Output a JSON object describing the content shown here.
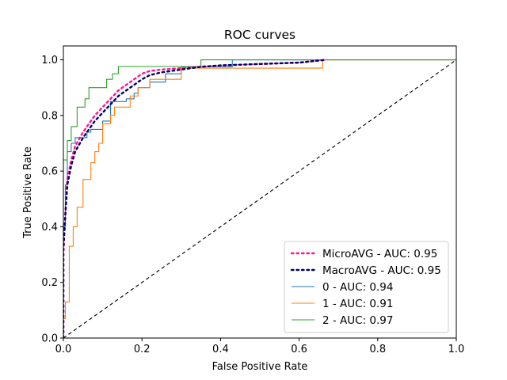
{
  "chart_data": {
    "type": "line",
    "title": "ROC curves",
    "xlabel": "False Positive Rate",
    "ylabel": "True Positive Rate",
    "xlim": [
      0.0,
      1.0
    ],
    "ylim": [
      0.0,
      1.05
    ],
    "xticks": [
      "0.0",
      "0.2",
      "0.4",
      "0.6",
      "0.8",
      "1.0"
    ],
    "yticks": [
      "0.0",
      "0.2",
      "0.4",
      "0.6",
      "0.8",
      "1.0"
    ],
    "grid": false,
    "legend_position": "lower-right",
    "series": [
      {
        "name": "MicroAVG - AUC: 0.95",
        "style": "dotted",
        "color": "#ff1493",
        "x": [
          0.0,
          0.0,
          0.005,
          0.01,
          0.02,
          0.03,
          0.05,
          0.07,
          0.08,
          0.1,
          0.12,
          0.14,
          0.16,
          0.18,
          0.2,
          0.22,
          0.25,
          0.3,
          0.35,
          0.4,
          0.5,
          0.6,
          0.667
        ],
        "y": [
          0.0,
          0.3,
          0.45,
          0.57,
          0.64,
          0.69,
          0.74,
          0.78,
          0.8,
          0.83,
          0.86,
          0.89,
          0.91,
          0.93,
          0.95,
          0.96,
          0.965,
          0.97,
          0.975,
          0.98,
          0.985,
          0.99,
          1.0
        ]
      },
      {
        "name": "MacroAVG - AUC: 0.95",
        "style": "dotted",
        "color": "#000066",
        "x": [
          0.0,
          0.0,
          0.005,
          0.01,
          0.02,
          0.03,
          0.05,
          0.07,
          0.08,
          0.1,
          0.12,
          0.14,
          0.16,
          0.18,
          0.2,
          0.22,
          0.25,
          0.3,
          0.35,
          0.4,
          0.5,
          0.6,
          0.667
        ],
        "y": [
          0.0,
          0.32,
          0.44,
          0.55,
          0.62,
          0.67,
          0.72,
          0.76,
          0.78,
          0.81,
          0.84,
          0.87,
          0.89,
          0.91,
          0.93,
          0.945,
          0.955,
          0.965,
          0.975,
          0.98,
          0.985,
          0.99,
          1.0
        ]
      },
      {
        "name": "0 - AUC: 0.94",
        "style": "step",
        "color": "#1f77b4",
        "x": [
          0.0,
          0.0,
          0.005,
          0.005,
          0.01,
          0.01,
          0.02,
          0.02,
          0.03,
          0.03,
          0.06,
          0.06,
          0.07,
          0.07,
          0.1,
          0.1,
          0.12,
          0.12,
          0.16,
          0.16,
          0.18,
          0.18,
          0.19,
          0.19,
          0.2,
          0.2,
          0.22,
          0.22,
          0.26,
          0.26,
          0.3,
          0.3,
          0.43,
          0.43,
          1.0
        ],
        "y": [
          0.0,
          0.4,
          0.4,
          0.55,
          0.55,
          0.67,
          0.67,
          0.7,
          0.7,
          0.72,
          0.72,
          0.74,
          0.74,
          0.75,
          0.75,
          0.78,
          0.78,
          0.85,
          0.85,
          0.86,
          0.86,
          0.88,
          0.88,
          0.9,
          0.9,
          0.9,
          0.9,
          0.92,
          0.92,
          0.95,
          0.95,
          0.975,
          0.975,
          1.0,
          1.0
        ]
      },
      {
        "name": "1 - AUC: 0.91",
        "style": "step",
        "color": "#ff7f0e",
        "x": [
          0.0,
          0.0,
          0.005,
          0.005,
          0.015,
          0.015,
          0.025,
          0.025,
          0.035,
          0.035,
          0.05,
          0.05,
          0.07,
          0.07,
          0.08,
          0.08,
          0.09,
          0.09,
          0.1,
          0.1,
          0.12,
          0.12,
          0.13,
          0.13,
          0.17,
          0.17,
          0.19,
          0.19,
          0.22,
          0.22,
          0.3,
          0.3,
          0.66,
          0.66,
          1.0
        ],
        "y": [
          0.0,
          0.07,
          0.07,
          0.13,
          0.13,
          0.33,
          0.33,
          0.4,
          0.4,
          0.47,
          0.47,
          0.57,
          0.57,
          0.63,
          0.63,
          0.67,
          0.67,
          0.7,
          0.7,
          0.77,
          0.77,
          0.8,
          0.8,
          0.83,
          0.83,
          0.87,
          0.87,
          0.9,
          0.9,
          0.93,
          0.93,
          0.97,
          0.97,
          1.0,
          1.0
        ]
      },
      {
        "name": "2 - AUC: 0.97",
        "style": "step",
        "color": "#2ca02c",
        "x": [
          0.0,
          0.0,
          0.01,
          0.01,
          0.02,
          0.02,
          0.035,
          0.035,
          0.055,
          0.055,
          0.065,
          0.065,
          0.11,
          0.11,
          0.125,
          0.125,
          0.14,
          0.14,
          0.35,
          0.35,
          1.0
        ],
        "y": [
          0.0,
          0.64,
          0.64,
          0.71,
          0.71,
          0.76,
          0.76,
          0.83,
          0.83,
          0.86,
          0.86,
          0.9,
          0.9,
          0.93,
          0.93,
          0.95,
          0.95,
          0.976,
          0.976,
          1.0,
          1.0
        ]
      },
      {
        "name": "",
        "style": "dashed",
        "color": "#000000",
        "x": [
          0.0,
          1.0
        ],
        "y": [
          0.0,
          1.0
        ]
      }
    ]
  }
}
